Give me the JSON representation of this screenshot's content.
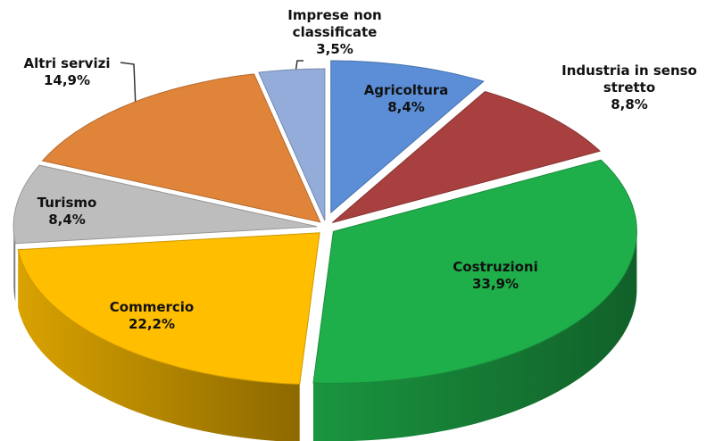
{
  "chart_data": {
    "type": "pie",
    "categories": [
      "Agricoltura",
      "Industria in senso stretto",
      "Costruzioni",
      "Commercio",
      "Turismo",
      "Altri servizi",
      "Imprese non classificate"
    ],
    "values": [
      8.4,
      8.8,
      33.9,
      22.2,
      8.4,
      14.9,
      3.5
    ],
    "value_labels": [
      "8,4%",
      "8,8%",
      "33,9%",
      "22,2%",
      "8,4%",
      "14,9%",
      "3,5%"
    ],
    "colors": [
      "#5b8ed6",
      "#a8403f",
      "#1faf4a",
      "#ffbe00",
      "#bdbdbd",
      "#e0843a",
      "#93acd9"
    ]
  }
}
